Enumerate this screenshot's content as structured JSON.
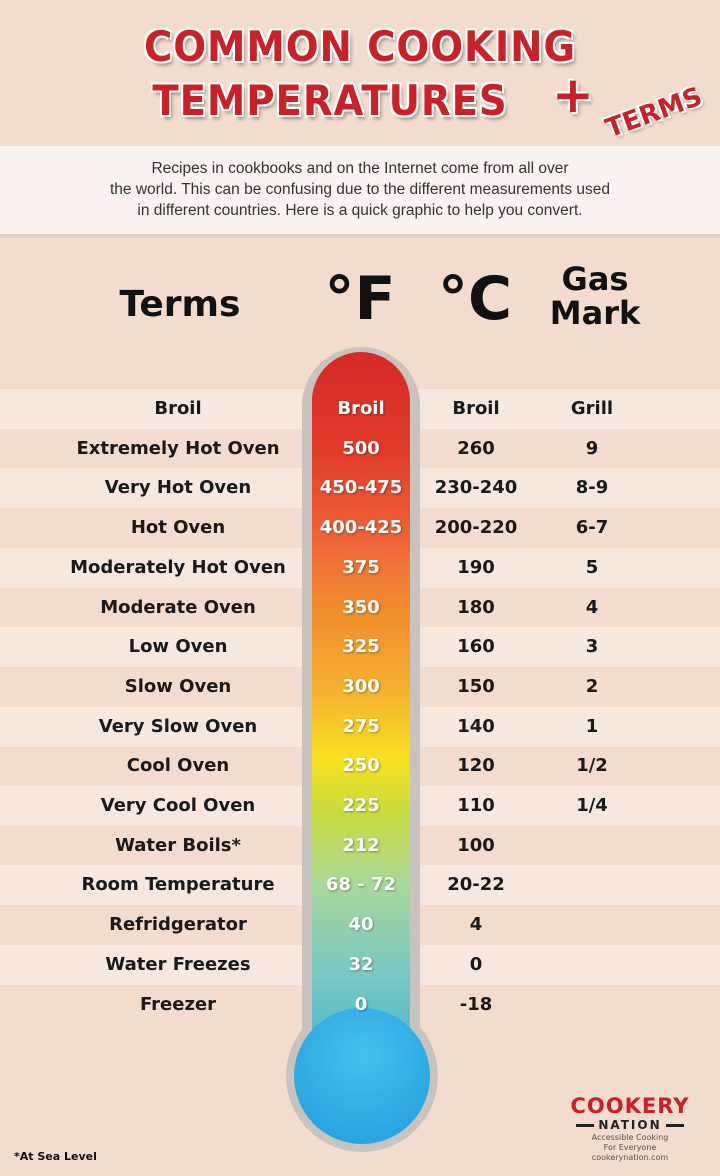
{
  "title": {
    "line1": "COMMON COOKING",
    "line2": "TEMPERATURES",
    "plus": "+",
    "terms": "TERMS"
  },
  "intro": [
    "Recipes in cookbooks and on the Internet come from all over",
    "the world.  This can be confusing due to the different measurements used",
    "in different countries. Here is a quick graphic to help you convert."
  ],
  "headers": {
    "terms": "Terms",
    "f": "°F",
    "c": "°C",
    "gas1": "Gas",
    "gas2": "Mark"
  },
  "rows": [
    [
      "Broil",
      "Broil",
      "Broil",
      "Grill"
    ],
    [
      "Extremely Hot Oven",
      "500",
      "260",
      "9"
    ],
    [
      "Very Hot Oven",
      "450-475",
      "230-240",
      "8-9"
    ],
    [
      "Hot Oven",
      "400-425",
      "200-220",
      "6-7"
    ],
    [
      "Moderately Hot Oven",
      "375",
      "190",
      "5"
    ],
    [
      "Moderate Oven",
      "350",
      "180",
      "4"
    ],
    [
      "Low Oven",
      "325",
      "160",
      "3"
    ],
    [
      "Slow Oven",
      "300",
      "150",
      "2"
    ],
    [
      "Very Slow Oven",
      "275",
      "140",
      "1"
    ],
    [
      "Cool Oven",
      "250",
      "120",
      "1/2"
    ],
    [
      "Very Cool Oven",
      "225",
      "110",
      "1/4"
    ],
    [
      "Water Boils*",
      "212",
      "100",
      ""
    ],
    [
      "Room Temperature",
      "68 - 72",
      "20-22",
      ""
    ],
    [
      "Refridgerator",
      "40",
      "4",
      ""
    ],
    [
      "Water Freezes",
      "32",
      "0",
      ""
    ],
    [
      "Freezer",
      "0",
      "-18",
      ""
    ]
  ],
  "footnote": "*At Sea Level",
  "logo": {
    "line1": "COOKERY",
    "line2": "NATION",
    "tag1": "Accessible Cooking",
    "tag2": "For Everyone",
    "url": "cookerynation.com"
  },
  "colors": {
    "title": "#cc2029",
    "hot": "#d42a28",
    "cold": "#1f9cdc"
  }
}
